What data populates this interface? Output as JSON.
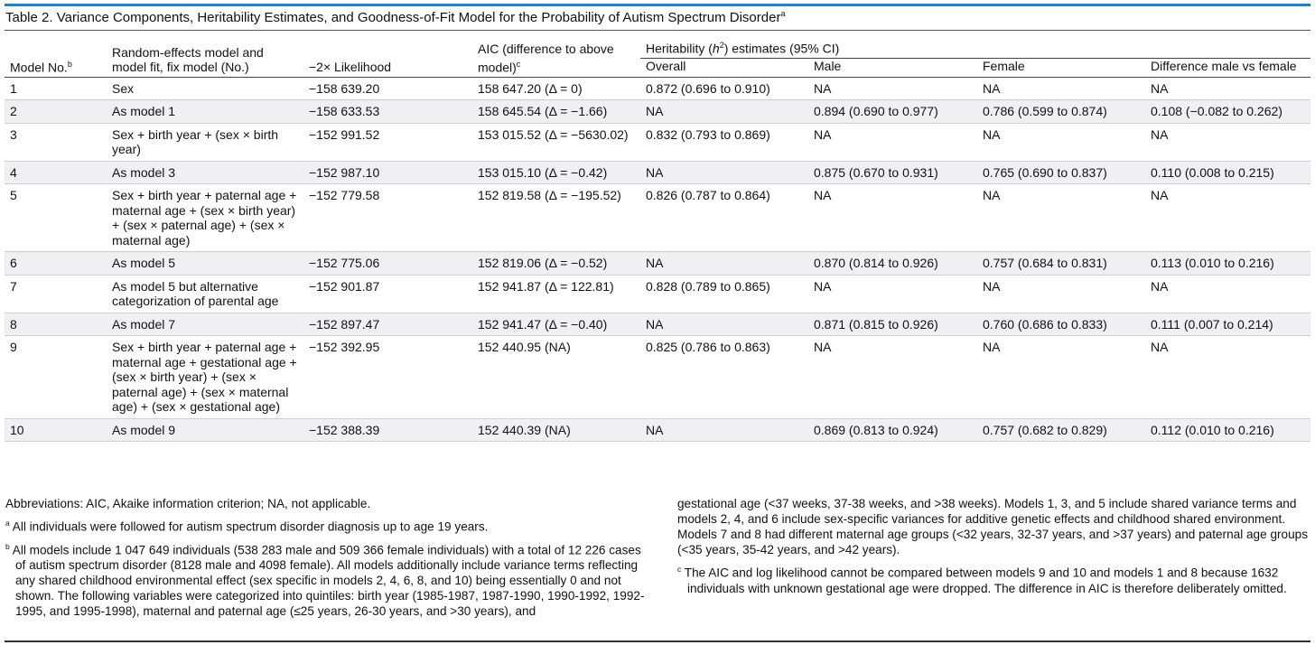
{
  "table": {
    "title": "Table 2. Variance Components, Heritability Estimates, and Goodness-of-Fit Model for the Probability of Autism Spectrum Disorder",
    "title_footnote": "a",
    "headers": {
      "model_no": "Model No.",
      "model_no_fn": "b",
      "random_effects": "Random-effects model and model fit, fix model (No.)",
      "likelihood": "−2× Likelihood",
      "aic": "AIC (difference to above model)",
      "aic_fn": "c",
      "heritability_pre": "Heritability (",
      "heritability_h": "h",
      "heritability_sup": "2",
      "heritability_post": ") estimates (95% CI)",
      "overall": "Overall",
      "male": "Male",
      "female": "Female",
      "difference": "Difference male vs female"
    },
    "rows": [
      {
        "no": "1",
        "model": "Sex",
        "likelihood": "−158 639.20",
        "aic": "158 647.20 (Δ = 0)",
        "overall": "0.872 (0.696 to 0.910)",
        "male": "NA",
        "female": "NA",
        "difference": "NA"
      },
      {
        "no": "2",
        "model": "As model 1",
        "likelihood": "−158 633.53",
        "aic": "158 645.54 (Δ = −1.66)",
        "overall": "NA",
        "male": "0.894 (0.690 to 0.977)",
        "female": "0.786 (0.599 to 0.874)",
        "difference": "0.108 (−0.082 to 0.262)"
      },
      {
        "no": "3",
        "model": "Sex + birth year + (sex × birth year)",
        "likelihood": "−152 991.52",
        "aic": "153 015.52 (Δ = −5630.02)",
        "overall": "0.832 (0.793 to 0.869)",
        "male": "NA",
        "female": "NA",
        "difference": "NA"
      },
      {
        "no": "4",
        "model": "As model 3",
        "likelihood": "−152 987.10",
        "aic": "153 015.10 (Δ = −0.42)",
        "overall": "NA",
        "male": "0.875 (0.670 to 0.931)",
        "female": "0.765 (0.690 to 0.837)",
        "difference": "0.110 (0.008 to 0.215)"
      },
      {
        "no": "5",
        "model": "Sex + birth year + paternal age + maternal age + (sex × birth year) + (sex × paternal age) + (sex × maternal age)",
        "likelihood": "−152 779.58",
        "aic": "152 819.58 (Δ = −195.52)",
        "overall": "0.826 (0.787 to 0.864)",
        "male": "NA",
        "female": "NA",
        "difference": "NA"
      },
      {
        "no": "6",
        "model": "As model 5",
        "likelihood": "−152 775.06",
        "aic": "152 819.06 (Δ = −0.52)",
        "overall": "NA",
        "male": "0.870 (0.814 to 0.926)",
        "female": "0.757 (0.684 to 0.831)",
        "difference": "0.113 (0.010 to 0.216)"
      },
      {
        "no": "7",
        "model": "As model 5 but alternative categorization of parental age",
        "likelihood": "−152 901.87",
        "aic": "152 941.87 (Δ = 122.81)",
        "overall": "0.828 (0.789 to 0.865)",
        "male": "NA",
        "female": "NA",
        "difference": "NA"
      },
      {
        "no": "8",
        "model": "As model 7",
        "likelihood": "−152 897.47",
        "aic": "152 941.47 (Δ = −0.40)",
        "overall": "NA",
        "male": "0.871 (0.815 to 0.926)",
        "female": "0.760 (0.686 to 0.833)",
        "difference": "0.111 (0.007 to 0.214)"
      },
      {
        "no": "9",
        "model": "Sex + birth year + paternal age + maternal age + gestational age + (sex × birth year) + (sex × paternal age) + (sex × maternal age) + (sex × gestational age)",
        "likelihood": "−152 392.95",
        "aic": "152 440.95 (NA)",
        "overall": "0.825 (0.786 to 0.863)",
        "male": "NA",
        "female": "NA",
        "difference": "NA"
      },
      {
        "no": "10",
        "model": "As model 9",
        "likelihood": "−152 388.39",
        "aic": "152 440.39 (NA)",
        "overall": "NA",
        "male": "0.869 (0.813 to 0.924)",
        "female": "0.757 (0.682 to 0.829)",
        "difference": "0.112 (0.010 to 0.216)"
      }
    ]
  },
  "notes": {
    "abbreviations": "Abbreviations: AIC, Akaike information criterion; NA, not applicable.",
    "a_mark": "a",
    "a_text": "All individuals were followed for autism spectrum disorder diagnosis up to age 19 years.",
    "b_mark": "b",
    "b_text": "All models include 1 047 649 individuals (538 283 male and 509 366 female individuals) with a total of 12 226 cases of autism spectrum disorder (8128 male and 4098 female). All models additionally include variance terms reflecting any shared childhood environmental effect (sex specific in models 2, 4, 6, 8, and 10) being essentially 0 and not shown. The following variables were categorized into quintiles: birth year (1985-1987, 1987-1990, 1990-1992, 1992-1995, and 1995-1998), maternal and paternal age (≤25 years, 26-30 years, and >30 years), and",
    "b_continued": "gestational age (<37 weeks, 37-38 weeks, and >38 weeks). Models 1, 3, and 5 include shared variance terms and models 2, 4, and 6 include sex-specific variances for additive genetic effects and childhood shared environment. Models 7 and 8 had different maternal age groups (<32 years, 32-37 years, and >37 years) and paternal age groups (<35 years, 35-42 years, and >42 years).",
    "c_mark": "c",
    "c_text": "The AIC and log likelihood cannot be compared between models 9 and 10 and models 1 and 8 because 1632 individuals with unknown gestational age were dropped. The difference in AIC is therefore deliberately omitted."
  },
  "colors": {
    "accent_rule": "#1a86c9",
    "row_shade": "#eef0f4"
  }
}
